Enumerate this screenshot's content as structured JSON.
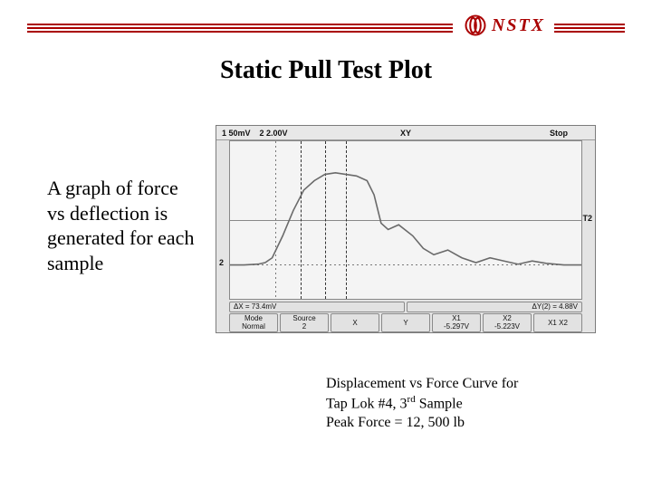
{
  "header": {
    "brand": "NSTX",
    "rule_color": "#aa0000"
  },
  "title": "Static Pull Test Plot",
  "description": "A graph of force vs deflection is generated for each sample",
  "caption": {
    "line1": "Displacement vs Force Curve for",
    "line2_pre": "Tap Lok #4,  3",
    "line2_sup": "rd",
    "line2_post": " Sample",
    "line3": "Peak Force = 12, 500 lb"
  },
  "scope": {
    "topbar": {
      "ch1": "1  50mV",
      "ch2": "2 2.00V",
      "mode": "XY",
      "status": "Stop"
    },
    "plot": {
      "background": "#f4f4f4",
      "grid_color": "#888888",
      "trace_color": "#6a6a6a",
      "trace_width": 1.6,
      "cursor_color": "#333333",
      "channel_marker_left": "2",
      "channel_marker_right": "T2",
      "grid_h_positions": [
        0.5
      ],
      "dash_h_positions": [
        0.78
      ],
      "dash_v_positions": [
        0.2,
        0.27,
        0.33
      ],
      "solid_v_positions": [
        0.13
      ],
      "trace_points": [
        [
          0.0,
          0.785
        ],
        [
          0.04,
          0.785
        ],
        [
          0.08,
          0.78
        ],
        [
          0.1,
          0.77
        ],
        [
          0.12,
          0.74
        ],
        [
          0.15,
          0.6
        ],
        [
          0.18,
          0.44
        ],
        [
          0.21,
          0.31
        ],
        [
          0.24,
          0.25
        ],
        [
          0.27,
          0.21
        ],
        [
          0.3,
          0.2
        ],
        [
          0.33,
          0.21
        ],
        [
          0.36,
          0.22
        ],
        [
          0.39,
          0.25
        ],
        [
          0.41,
          0.34
        ],
        [
          0.43,
          0.52
        ],
        [
          0.45,
          0.56
        ],
        [
          0.48,
          0.53
        ],
        [
          0.52,
          0.6
        ],
        [
          0.55,
          0.68
        ],
        [
          0.58,
          0.72
        ],
        [
          0.62,
          0.69
        ],
        [
          0.66,
          0.74
        ],
        [
          0.7,
          0.77
        ],
        [
          0.74,
          0.74
        ],
        [
          0.78,
          0.76
        ],
        [
          0.82,
          0.78
        ],
        [
          0.86,
          0.76
        ],
        [
          0.9,
          0.775
        ],
        [
          0.95,
          0.785
        ],
        [
          1.0,
          0.785
        ]
      ]
    },
    "bottom_row1": {
      "dx": "ΔX = 73.4mV",
      "dy": "ΔY(2) = 4.88V"
    },
    "bottom_row2": {
      "mode_label": "Mode",
      "mode_value": "Normal",
      "source_label": "Source",
      "source_value": "2",
      "x_btn": "X",
      "y_btn": "Y",
      "x1_label": "X1",
      "x1_value": "-5.297V",
      "x2_label": "X2",
      "x2_value": "-5.223V",
      "x1x2_btn": "X1 X2"
    }
  }
}
